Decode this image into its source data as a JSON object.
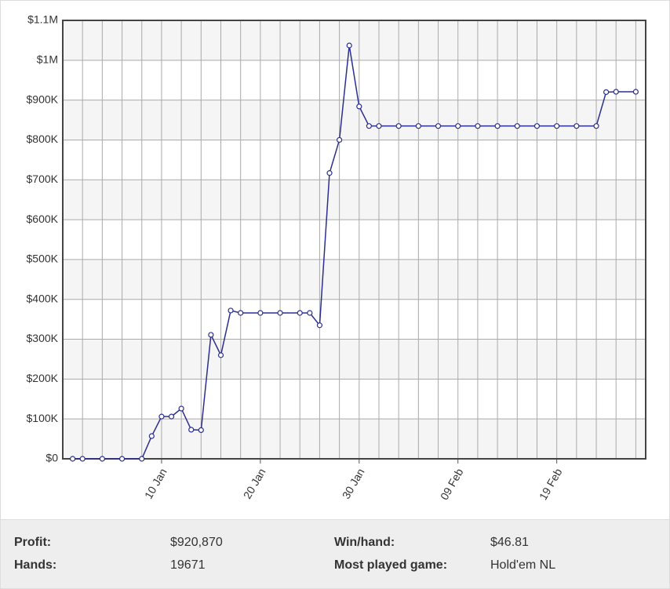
{
  "chart_data": {
    "type": "line",
    "x": [
      "01 Jan",
      "02 Jan",
      "04 Jan",
      "06 Jan",
      "08 Jan",
      "09 Jan",
      "10 Jan",
      "11 Jan",
      "12 Jan",
      "13 Jan",
      "14 Jan",
      "15 Jan",
      "16 Jan",
      "17 Jan",
      "18 Jan",
      "20 Jan",
      "22 Jan",
      "24 Jan",
      "25 Jan",
      "26 Jan",
      "27 Jan",
      "28 Jan",
      "29 Jan",
      "30 Jan",
      "31 Jan",
      "01 Feb",
      "03 Feb",
      "05 Feb",
      "07 Feb",
      "09 Feb",
      "11 Feb",
      "13 Feb",
      "15 Feb",
      "17 Feb",
      "19 Feb",
      "21 Feb",
      "23 Feb",
      "24 Feb",
      "25 Feb",
      "27 Feb"
    ],
    "series": [
      {
        "color": "#2b2f8f",
        "values": [
          0,
          0,
          0,
          0,
          0,
          57000,
          106000,
          106000,
          126000,
          73000,
          72000,
          311000,
          260000,
          372000,
          366000,
          366000,
          366000,
          366000,
          366000,
          335000,
          717000,
          800000,
          1037000,
          884000,
          835000,
          835000,
          835000,
          835000,
          835000,
          835000,
          835000,
          835000,
          835000,
          835000,
          835000,
          835000,
          835000,
          920000,
          920870,
          920870
        ]
      }
    ],
    "xlim": [
      "31 Dec",
      "28 Feb"
    ],
    "xticks": [
      "10 Jan",
      "20 Jan",
      "30 Jan",
      "09 Feb",
      "19 Feb"
    ],
    "ylim": [
      0,
      1100000
    ],
    "yticks": [
      {
        "value": 0,
        "label": "$0"
      },
      {
        "value": 100000,
        "label": "$100K"
      },
      {
        "value": 200000,
        "label": "$200K"
      },
      {
        "value": 300000,
        "label": "$300K"
      },
      {
        "value": 400000,
        "label": "$400K"
      },
      {
        "value": 500000,
        "label": "$500K"
      },
      {
        "value": 600000,
        "label": "$600K"
      },
      {
        "value": 700000,
        "label": "$700K"
      },
      {
        "value": 800000,
        "label": "$800K"
      },
      {
        "value": 900000,
        "label": "$900K"
      },
      {
        "value": 1000000,
        "label": "$1M"
      },
      {
        "value": 1100000,
        "label": "$1.1M"
      }
    ],
    "grid": true
  },
  "stats": {
    "rows": [
      [
        "Profit:",
        "$920,870",
        "Win/hand:",
        "$46.81"
      ],
      [
        "Hands:",
        "19671",
        "Most played game:",
        "Hold'em NL"
      ]
    ]
  }
}
